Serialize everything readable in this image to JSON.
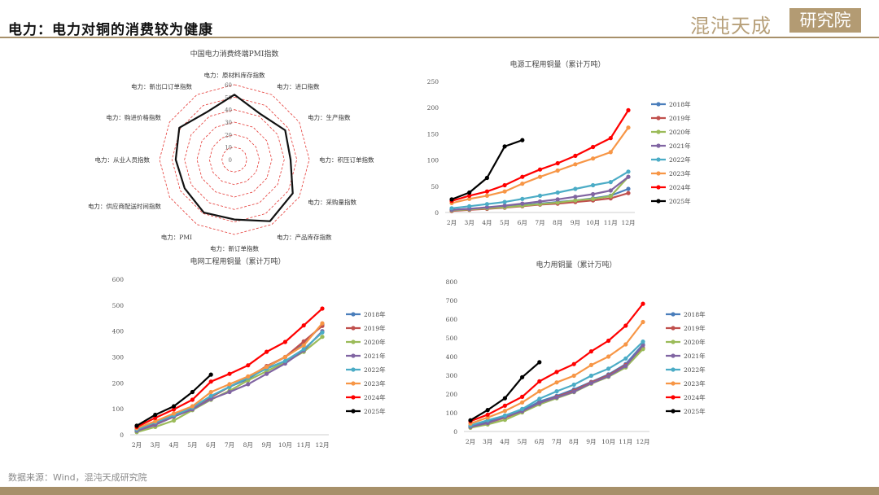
{
  "header": {
    "title": "电力：电力对铜的消费较为健康",
    "logo_text": "混沌天成",
    "logo_box_text": "研究院",
    "rule_color": "#a7906a"
  },
  "footer": {
    "source": "数据来源：Wind，混沌天成研究院"
  },
  "chart_data": [
    {
      "type": "radar",
      "title": "中国电力消费终端PMI指数",
      "axes": [
        "电力：原材料库存指数",
        "电力：进口指数",
        "电力：生产指数",
        "电力：积压订单指数",
        "电力：采购量指数",
        "电力：产品库存指数",
        "电力：新订单指数",
        "电力：PMI",
        "电力：供应商配送时间指数",
        "电力：从业人员指数",
        "电力：购进价格指数",
        "电力：新出口订单指数"
      ],
      "values": [
        52,
        42,
        47,
        45,
        54,
        57,
        48,
        49,
        46,
        47,
        51,
        44
      ],
      "ticks": [
        0,
        10,
        20,
        30,
        40,
        50,
        60
      ],
      "range": [
        0,
        60
      ],
      "grid_color": "#e53935",
      "line_color": "#111111"
    },
    {
      "type": "line",
      "title": "电源工程用铜量（累计万吨）",
      "categories": [
        "2月",
        "3月",
        "4月",
        "5月",
        "6月",
        "7月",
        "8月",
        "9月",
        "10月",
        "11月",
        "12月"
      ],
      "ylim": [
        0,
        250
      ],
      "yticks": [
        0,
        50,
        100,
        150,
        200,
        250
      ],
      "legend_position": "right",
      "series": [
        {
          "name": "2018年",
          "color": "#4a7ebb",
          "values": [
            5,
            7,
            9,
            11,
            14,
            17,
            20,
            23,
            27,
            32,
            45
          ]
        },
        {
          "name": "2019年",
          "color": "#c0504d",
          "values": [
            3,
            5,
            7,
            9,
            12,
            15,
            17,
            20,
            23,
            27,
            37
          ]
        },
        {
          "name": "2020年",
          "color": "#9bbb59",
          "values": [
            4,
            6,
            8,
            10,
            13,
            16,
            19,
            23,
            26,
            31,
            68
          ]
        },
        {
          "name": "2021年",
          "color": "#8064a2",
          "values": [
            5,
            7,
            10,
            13,
            17,
            21,
            25,
            30,
            35,
            42,
            68
          ]
        },
        {
          "name": "2022年",
          "color": "#4bacc6",
          "values": [
            8,
            12,
            16,
            20,
            26,
            32,
            38,
            45,
            52,
            58,
            78
          ]
        },
        {
          "name": "2023年",
          "color": "#f79646",
          "values": [
            18,
            26,
            32,
            40,
            55,
            68,
            80,
            92,
            103,
            115,
            162
          ]
        },
        {
          "name": "2024年",
          "color": "#ff0000",
          "values": [
            22,
            32,
            40,
            52,
            68,
            82,
            94,
            108,
            125,
            142,
            195
          ]
        },
        {
          "name": "2025年",
          "color": "#000000",
          "values": [
            25,
            38,
            66,
            126,
            138,
            null,
            null,
            null,
            null,
            null,
            null
          ]
        }
      ]
    },
    {
      "type": "line",
      "title": "电网工程用铜量（累计万吨）",
      "categories": [
        "2月",
        "3月",
        "4月",
        "5月",
        "6月",
        "7月",
        "8月",
        "9月",
        "10月",
        "11月",
        "12月"
      ],
      "ylim": [
        0,
        600
      ],
      "yticks": [
        0,
        100,
        200,
        300,
        400,
        500,
        600
      ],
      "legend_position": "right",
      "series": [
        {
          "name": "2018年",
          "color": "#4a7ebb",
          "values": [
            18,
            45,
            75,
            100,
            145,
            185,
            215,
            260,
            300,
            350,
            425
          ]
        },
        {
          "name": "2019年",
          "color": "#c0504d",
          "values": [
            15,
            40,
            70,
            100,
            145,
            185,
            220,
            265,
            300,
            360,
            420
          ]
        },
        {
          "name": "2020年",
          "color": "#9bbb59",
          "values": [
            10,
            30,
            55,
            95,
            135,
            170,
            210,
            245,
            280,
            320,
            378
          ]
        },
        {
          "name": "2021年",
          "color": "#8064a2",
          "values": [
            15,
            38,
            70,
            98,
            138,
            165,
            195,
            235,
            275,
            325,
            400
          ]
        },
        {
          "name": "2022年",
          "color": "#4bacc6",
          "values": [
            20,
            48,
            75,
            105,
            150,
            185,
            220,
            255,
            285,
            330,
            395
          ]
        },
        {
          "name": "2023年",
          "color": "#f79646",
          "values": [
            25,
            52,
            82,
            110,
            165,
            195,
            225,
            262,
            300,
            345,
            430
          ]
        },
        {
          "name": "2024年",
          "color": "#ff0000",
          "values": [
            30,
            65,
            98,
            135,
            205,
            235,
            268,
            320,
            358,
            422,
            487
          ]
        },
        {
          "name": "2025年",
          "color": "#000000",
          "values": [
            35,
            77,
            110,
            165,
            232,
            null,
            null,
            null,
            null,
            null,
            null
          ]
        }
      ]
    },
    {
      "type": "line",
      "title": "电力用铜量（累计万吨）",
      "categories": [
        "2月",
        "3月",
        "4月",
        "5月",
        "6月",
        "7月",
        "8月",
        "9月",
        "10月",
        "11月",
        "12月"
      ],
      "ylim": [
        0,
        800
      ],
      "yticks": [
        0,
        100,
        200,
        300,
        400,
        500,
        600,
        700,
        800
      ],
      "legend_position": "right",
      "series": [
        {
          "name": "2018年",
          "color": "#4a7ebb",
          "values": [
            28,
            52,
            82,
            112,
            160,
            190,
            225,
            265,
            305,
            360,
            465
          ]
        },
        {
          "name": "2019年",
          "color": "#c0504d",
          "values": [
            22,
            45,
            75,
            105,
            152,
            185,
            218,
            262,
            300,
            355,
            445
          ]
        },
        {
          "name": "2020年",
          "color": "#9bbb59",
          "values": [
            20,
            38,
            62,
            102,
            145,
            178,
            210,
            255,
            292,
            342,
            440
          ]
        },
        {
          "name": "2021年",
          "color": "#8064a2",
          "values": [
            25,
            45,
            78,
            108,
            152,
            182,
            212,
            258,
            295,
            350,
            460
          ]
        },
        {
          "name": "2022年",
          "color": "#4bacc6",
          "values": [
            32,
            60,
            85,
            120,
            175,
            215,
            250,
            298,
            335,
            390,
            480
          ]
        },
        {
          "name": "2023年",
          "color": "#f79646",
          "values": [
            42,
            75,
            110,
            155,
            215,
            262,
            298,
            355,
            400,
            465,
            585
          ]
        },
        {
          "name": "2024年",
          "color": "#ff0000",
          "values": [
            55,
            90,
            138,
            185,
            268,
            318,
            360,
            428,
            485,
            565,
            682
          ]
        },
        {
          "name": "2025年",
          "color": "#000000",
          "values": [
            60,
            115,
            178,
            290,
            370,
            null,
            null,
            null,
            null,
            null,
            null
          ]
        }
      ]
    }
  ]
}
